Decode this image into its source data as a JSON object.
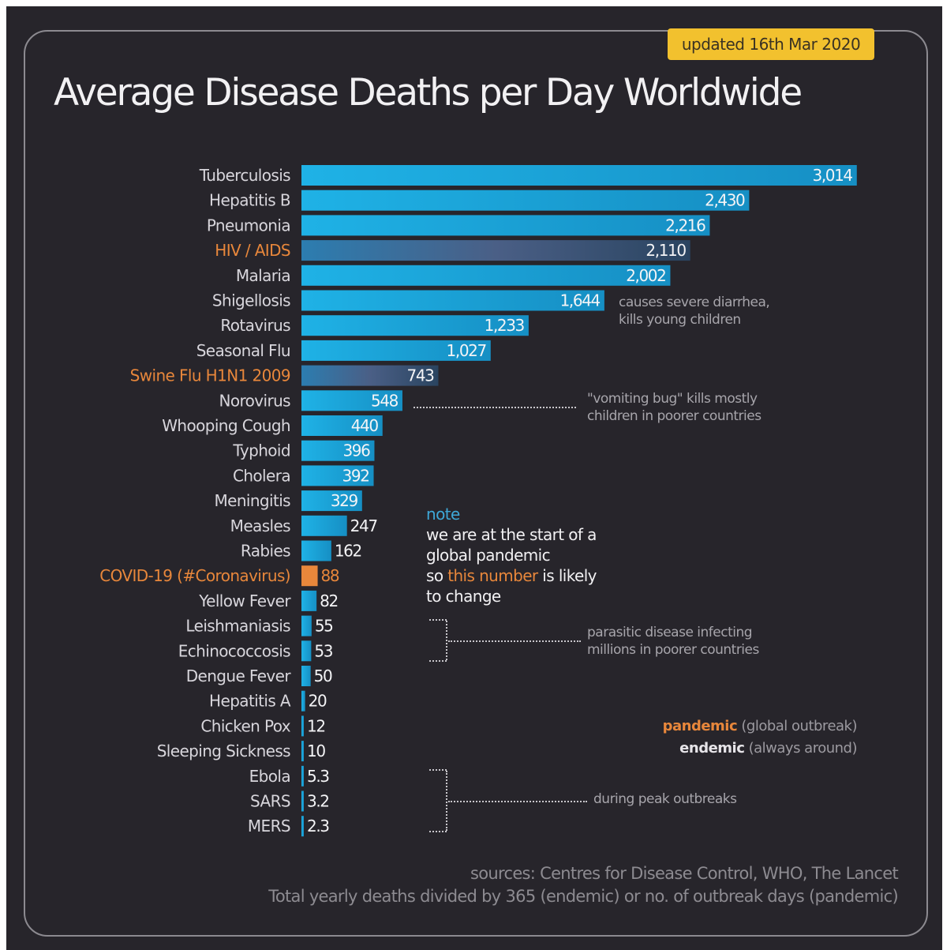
{
  "badge": "updated 16th Mar 2020",
  "title": "Average Disease Deaths per Day Worldwide",
  "chart_data": {
    "type": "bar",
    "orientation": "horizontal",
    "categories": [
      "Tuberculosis",
      "Hepatitis B",
      "Pneumonia",
      "HIV / AIDS",
      "Malaria",
      "Shigellosis",
      "Rotavirus",
      "Seasonal Flu",
      "Swine Flu H1N1 2009",
      "Norovirus",
      "Whooping Cough",
      "Typhoid",
      "Cholera",
      "Meningitis",
      "Measles",
      "Rabies",
      "COVID-19 (#Coronavirus)",
      "Yellow Fever",
      "Leishmaniasis",
      "Echinococcosis",
      "Dengue Fever",
      "Hepatitis A",
      "Chicken Pox",
      "Sleeping Sickness",
      "Ebola",
      "SARS",
      "MERS"
    ],
    "values": [
      3014,
      2430,
      2216,
      2110,
      2002,
      1644,
      1233,
      1027,
      743,
      548,
      440,
      396,
      392,
      329,
      247,
      162,
      88,
      82,
      55,
      53,
      50,
      20,
      12,
      10,
      5.3,
      3.2,
      2.3
    ],
    "value_labels": [
      "3,014",
      "2,430",
      "2,216",
      "2,110",
      "2,002",
      "1,644",
      "1,233",
      "1,027",
      "743",
      "548",
      "440",
      "396",
      "392",
      "329",
      "247",
      "162",
      "88",
      "82",
      "55",
      "53",
      "50",
      "20",
      "12",
      "10",
      "5.3",
      "3.2",
      "2.3"
    ],
    "kind": [
      "endemic",
      "endemic",
      "endemic",
      "pandemic",
      "endemic",
      "endemic",
      "endemic",
      "endemic",
      "pandemic",
      "endemic",
      "endemic",
      "endemic",
      "endemic",
      "endemic",
      "endemic",
      "endemic",
      "pandemic",
      "endemic",
      "endemic",
      "endemic",
      "endemic",
      "endemic",
      "endemic",
      "endemic",
      "endemic",
      "endemic",
      "endemic"
    ],
    "colors": {
      "endemic_bar": "#1ea9dc",
      "endemic_label": "#d8d6dc",
      "pandemic_label": "#e8873b",
      "covid_bar": "#e8873b",
      "pandemic_bar": "#3a5a82"
    },
    "legend_position": "bottom-right"
  },
  "annotations": {
    "shigellosis": [
      "causes severe diarrhea,",
      "kills young children"
    ],
    "norovirus": [
      "\"vomiting bug\" kills mostly",
      "children in poorer countries"
    ],
    "parasitic": [
      "parasitic disease infecting",
      "millions in poorer countries"
    ],
    "outbreaks": "during peak outbreaks"
  },
  "note": {
    "title": "note",
    "line1": "we are at the start of a",
    "line2": "global pandemic",
    "line3_pre": "so ",
    "line3_hl": "this number",
    "line3_post": " is likely",
    "line4": "to change"
  },
  "legend": {
    "pandemic_key": "pandemic",
    "pandemic_desc": "(global outbreak)",
    "endemic_key": "endemic",
    "endemic_desc": "(always around)"
  },
  "sources": {
    "line1": "sources: Centres for Disease Control, WHO, The Lancet",
    "line2": "Total yearly deaths divided by 365 (endemic) or no. of outbreak days (pandemic)"
  }
}
